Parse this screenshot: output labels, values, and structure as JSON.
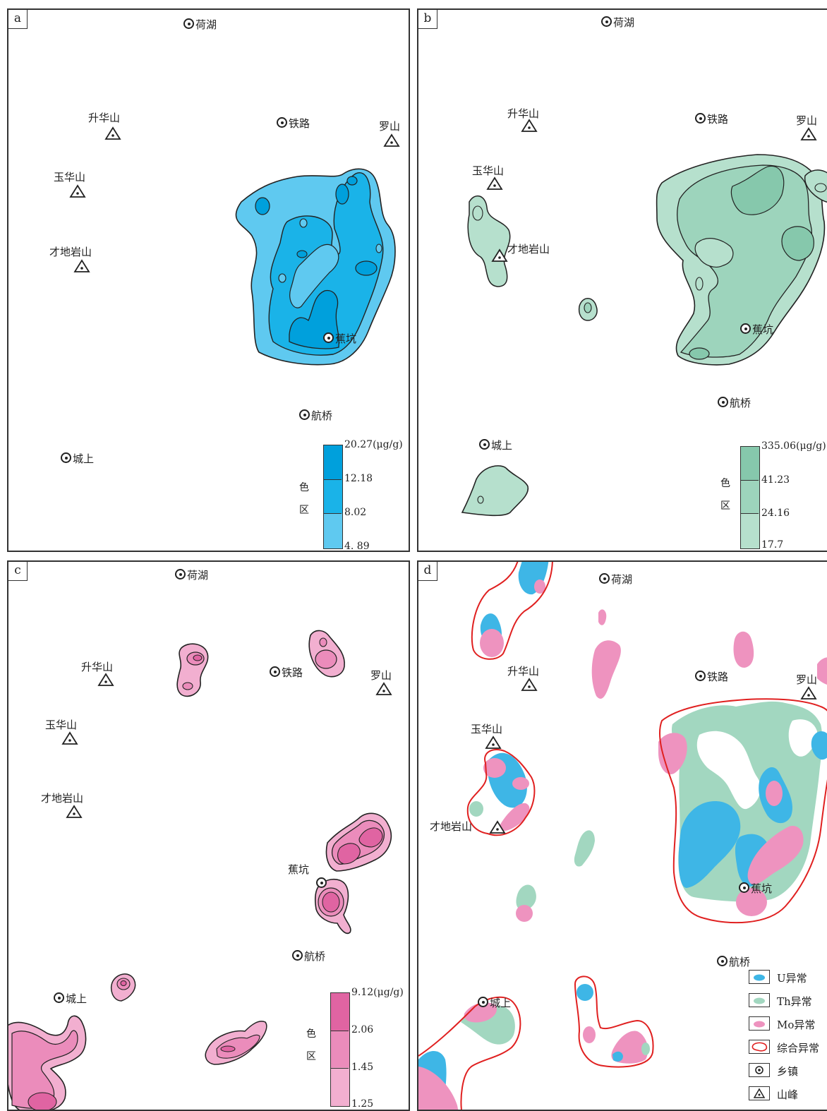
{
  "colors": {
    "u_shades": [
      "#00a0dc",
      "#1ab3e8",
      "#5fc9f0"
    ],
    "th_shades": [
      "#86c8ac",
      "#9dd4bc",
      "#b6e0cd"
    ],
    "mo_shades": [
      "#e064a2",
      "#eb8cbb",
      "#f2afd0"
    ],
    "u": "#3eb6e6",
    "th": "#a2d7c0",
    "mo": "#ee93bf",
    "combined": "#e02020"
  },
  "panels": {
    "a": {
      "label": "a",
      "towns": [
        "荷湖",
        "铁路",
        "蕉坑",
        "航桥",
        "城上"
      ],
      "peaks": [
        "升华山",
        "罗山",
        "玉华山",
        "才地岩山"
      ],
      "scale": {
        "unit_top": "20.27(μg/g)",
        "v2": "12.18",
        "v3": "8.02",
        "v4": "4. 89",
        "cap1": "色",
        "cap2": "区"
      }
    },
    "b": {
      "label": "b",
      "towns": [
        "荷湖",
        "铁路",
        "蕉坑",
        "航桥",
        "城上"
      ],
      "peaks": [
        "升华山",
        "罗山",
        "玉华山",
        "才地岩山"
      ],
      "scale": {
        "unit_top": "335.06(μg/g)",
        "v2": "41.23",
        "v3": "24.16",
        "v4": "17.7",
        "cap1": "色",
        "cap2": "区"
      }
    },
    "c": {
      "label": "c",
      "towns": [
        "荷湖",
        "铁路",
        "蕉坑",
        "航桥",
        "城上"
      ],
      "peaks": [
        "升华山",
        "罗山",
        "玉华山",
        "才地岩山"
      ],
      "scale": {
        "unit_top": "9.12(μg/g)",
        "v2": "2.06",
        "v3": "1.45",
        "v4": "1.25",
        "cap1": "色",
        "cap2": "区"
      }
    },
    "d": {
      "label": "d",
      "towns": [
        "荷湖",
        "铁路",
        "蕉坑",
        "航桥",
        "城上"
      ],
      "peaks": [
        "升华山",
        "罗山",
        "玉华山",
        "才地岩山"
      ],
      "legend": [
        "U异常",
        "Th异常",
        "Mo异常",
        "综合异常",
        "乡镇",
        "山峰"
      ]
    }
  }
}
